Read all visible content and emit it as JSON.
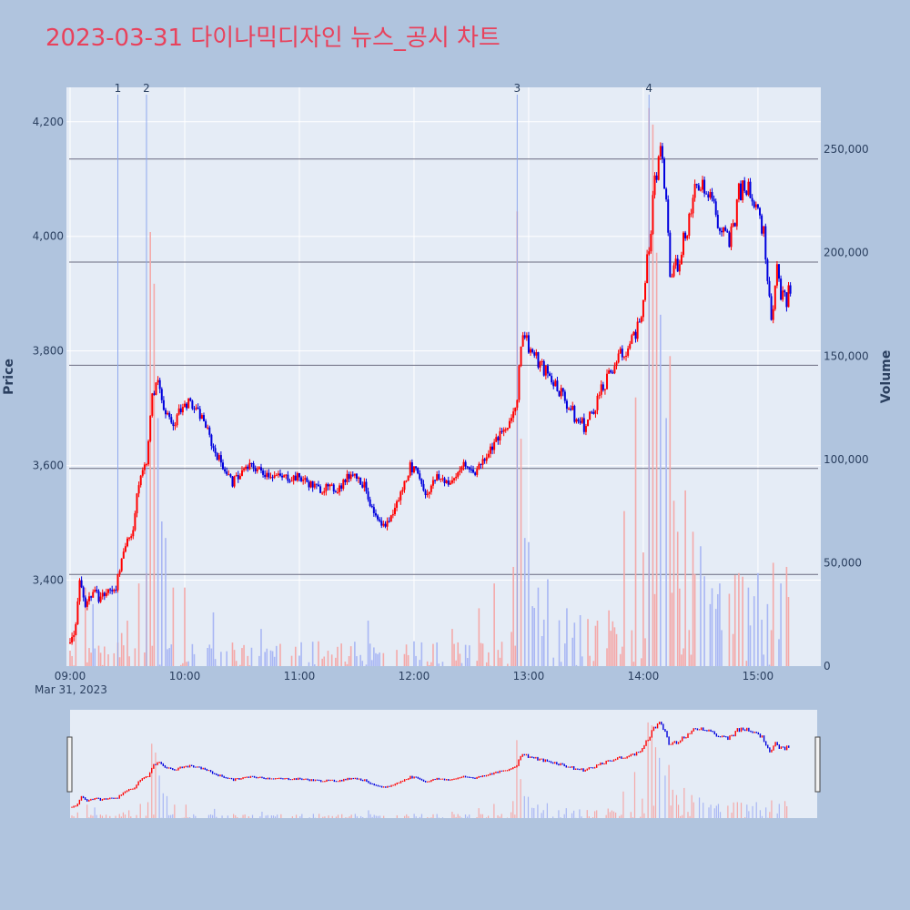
{
  "colors": {
    "background": "#b0c4de",
    "plot_bg": "#e5ecf6",
    "title": "#e8425c",
    "up": "#ff0000",
    "down": "#0000dd",
    "up_volume": "#f4a9a9",
    "down_volume": "#a9b7f4",
    "marker_line": "#8fa8ee",
    "grid": "#ffffff",
    "hline": "#6b6b80"
  },
  "chart_data": {
    "type": "candlestick",
    "title": "2023-03-31 다이나믹디자인 뉴스_공시 차트",
    "ylabel": "Price",
    "y2label": "Volume",
    "xlabel_date": "Mar 31, 2023",
    "price_range": [
      3250,
      4260
    ],
    "volume_range": [
      0,
      280000
    ],
    "price_ticks": [
      "3,400",
      "3,600",
      "3,800",
      "4,000",
      "4,200"
    ],
    "price_tick_values": [
      3400,
      3600,
      3800,
      4000,
      4200
    ],
    "volume_ticks": [
      "0",
      "50,000",
      "100,000",
      "150,000",
      "200,000",
      "250,000"
    ],
    "volume_tick_values": [
      0,
      50000,
      100000,
      150000,
      200000,
      250000
    ],
    "x_ticks": [
      "09:00",
      "10:00",
      "11:00",
      "12:00",
      "13:00",
      "14:00",
      "15:00"
    ],
    "x_tick_minutes": [
      0,
      60,
      120,
      180,
      240,
      300,
      360
    ],
    "x_range_minutes": [
      0,
      391
    ],
    "news_markers": [
      {
        "label": "1",
        "minute": 25
      },
      {
        "label": "2",
        "minute": 40
      },
      {
        "label": "3",
        "minute": 234
      },
      {
        "label": "4",
        "minute": 303
      }
    ],
    "horizontal_lines": [
      3410,
      3595,
      3775,
      3955,
      4135
    ],
    "price_path": [
      [
        0,
        3290
      ],
      [
        3,
        3320
      ],
      [
        5,
        3400
      ],
      [
        8,
        3360
      ],
      [
        12,
        3380
      ],
      [
        15,
        3370
      ],
      [
        20,
        3380
      ],
      [
        24,
        3390
      ],
      [
        27,
        3430
      ],
      [
        30,
        3470
      ],
      [
        33,
        3490
      ],
      [
        36,
        3570
      ],
      [
        40,
        3610
      ],
      [
        43,
        3720
      ],
      [
        46,
        3750
      ],
      [
        50,
        3690
      ],
      [
        54,
        3670
      ],
      [
        58,
        3700
      ],
      [
        62,
        3710
      ],
      [
        65,
        3700
      ],
      [
        70,
        3680
      ],
      [
        75,
        3630
      ],
      [
        80,
        3600
      ],
      [
        85,
        3570
      ],
      [
        90,
        3590
      ],
      [
        95,
        3600
      ],
      [
        100,
        3590
      ],
      [
        110,
        3580
      ],
      [
        120,
        3580
      ],
      [
        130,
        3560
      ],
      [
        140,
        3560
      ],
      [
        148,
        3590
      ],
      [
        155,
        3560
      ],
      [
        158,
        3520
      ],
      [
        163,
        3490
      ],
      [
        168,
        3510
      ],
      [
        174,
        3560
      ],
      [
        178,
        3600
      ],
      [
        183,
        3580
      ],
      [
        186,
        3550
      ],
      [
        192,
        3580
      ],
      [
        200,
        3570
      ],
      [
        205,
        3600
      ],
      [
        212,
        3590
      ],
      [
        218,
        3620
      ],
      [
        224,
        3650
      ],
      [
        230,
        3670
      ],
      [
        234,
        3720
      ],
      [
        237,
        3840
      ],
      [
        240,
        3810
      ],
      [
        245,
        3780
      ],
      [
        250,
        3760
      ],
      [
        255,
        3740
      ],
      [
        260,
        3710
      ],
      [
        265,
        3680
      ],
      [
        270,
        3670
      ],
      [
        275,
        3710
      ],
      [
        280,
        3740
      ],
      [
        285,
        3780
      ],
      [
        290,
        3800
      ],
      [
        295,
        3820
      ],
      [
        300,
        3880
      ],
      [
        303,
        3980
      ],
      [
        306,
        4100
      ],
      [
        309,
        4140
      ],
      [
        312,
        4070
      ],
      [
        314,
        3930
      ],
      [
        318,
        3960
      ],
      [
        322,
        4010
      ],
      [
        326,
        4060
      ],
      [
        330,
        4100
      ],
      [
        335,
        4080
      ],
      [
        340,
        4010
      ],
      [
        345,
        3990
      ],
      [
        350,
        4070
      ],
      [
        355,
        4090
      ],
      [
        360,
        4060
      ],
      [
        364,
        3980
      ],
      [
        367,
        3870
      ],
      [
        370,
        3930
      ],
      [
        374,
        3880
      ],
      [
        377,
        3910
      ]
    ],
    "volume_spikes": [
      [
        3,
        16000
      ],
      [
        8,
        38000
      ],
      [
        12,
        30000
      ],
      [
        27,
        16000
      ],
      [
        30,
        22000
      ],
      [
        36,
        40000
      ],
      [
        40,
        45000
      ],
      [
        42,
        210000
      ],
      [
        44,
        185000
      ],
      [
        46,
        120000
      ],
      [
        48,
        70000
      ],
      [
        50,
        62000
      ],
      [
        54,
        38000
      ],
      [
        60,
        38000
      ],
      [
        75,
        26000
      ],
      [
        100,
        18000
      ],
      [
        130,
        12000
      ],
      [
        156,
        22000
      ],
      [
        180,
        12000
      ],
      [
        200,
        18000
      ],
      [
        214,
        28000
      ],
      [
        222,
        40000
      ],
      [
        232,
        48000
      ],
      [
        234,
        220000
      ],
      [
        236,
        110000
      ],
      [
        238,
        62000
      ],
      [
        240,
        60000
      ],
      [
        245,
        38000
      ],
      [
        250,
        42000
      ],
      [
        260,
        28000
      ],
      [
        290,
        75000
      ],
      [
        296,
        130000
      ],
      [
        300,
        55000
      ],
      [
        303,
        270000
      ],
      [
        305,
        262000
      ],
      [
        307,
        200000
      ],
      [
        309,
        170000
      ],
      [
        312,
        120000
      ],
      [
        314,
        150000
      ],
      [
        316,
        80000
      ],
      [
        318,
        65000
      ],
      [
        322,
        85000
      ],
      [
        326,
        65000
      ],
      [
        330,
        58000
      ],
      [
        335,
        30000
      ],
      [
        340,
        40000
      ],
      [
        345,
        35000
      ],
      [
        350,
        45000
      ],
      [
        355,
        38000
      ],
      [
        360,
        45000
      ],
      [
        365,
        30000
      ],
      [
        368,
        50000
      ],
      [
        372,
        40000
      ],
      [
        375,
        48000
      ],
      [
        390,
        70000
      ]
    ]
  }
}
